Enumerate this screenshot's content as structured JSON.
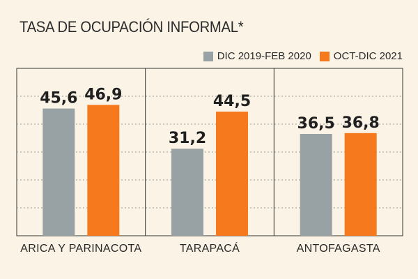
{
  "chart_data": {
    "type": "bar",
    "title": "TASA DE OCUPACIÓN INFORMAL*",
    "categories": [
      "ARICA Y PARINACOTA",
      "TARAPACÁ",
      "ANTOFAGASTA"
    ],
    "series": [
      {
        "name": "DIC 2019-FEB 2020",
        "color": "#98a2a5",
        "values": [
          45.6,
          31.2,
          36.5
        ],
        "labels": [
          "45,6",
          "31,2",
          "36,5"
        ]
      },
      {
        "name": "OCT-DIC 2021",
        "color": "#f6791e",
        "values": [
          46.9,
          44.5,
          36.8
        ],
        "labels": [
          "46,9",
          "44,5",
          "36,8"
        ]
      }
    ],
    "ylim": [
      0,
      60
    ],
    "grid": true,
    "legend_position": "top-right",
    "xlabel": "",
    "ylabel": ""
  }
}
